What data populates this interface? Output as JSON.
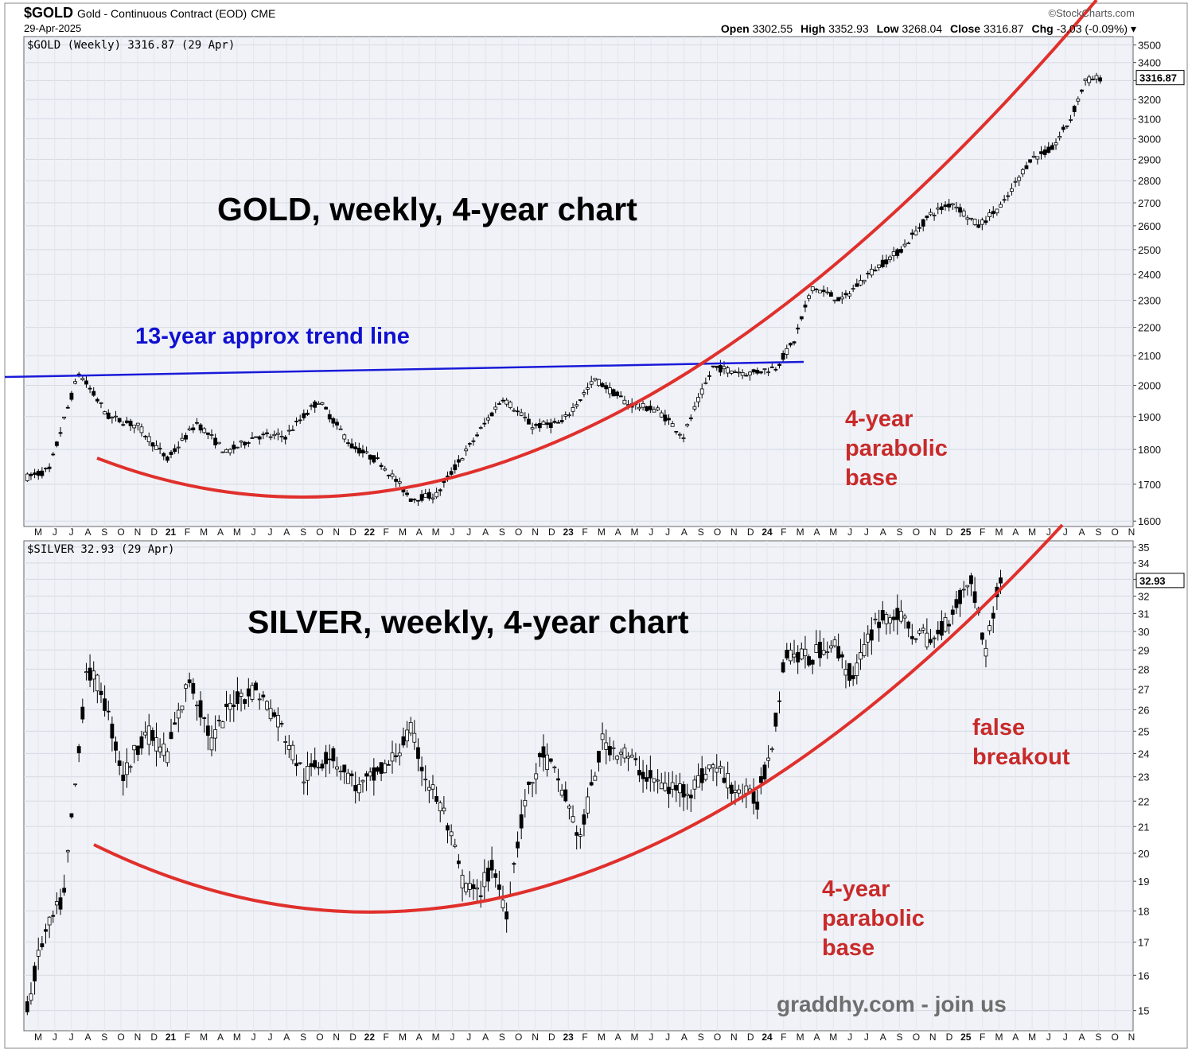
{
  "header": {
    "symbol": "$GOLD",
    "description": "Gold - Continuous Contract (EOD)",
    "exchange": "CME",
    "date": "29-Apr-2025",
    "brand": "©StockCharts.com",
    "open_label": "Open",
    "open": "3302.55",
    "high_label": "High",
    "high": "3352.93",
    "low_label": "Low",
    "low": "3268.04",
    "close_label": "Close",
    "close": "3316.87",
    "chg_label": "Chg",
    "chg": "-3.03 (-0.09%)"
  },
  "chart_data": [
    {
      "type": "candlestick",
      "legend": "$GOLD (Weekly) 3316.87 (29 Apr)",
      "title": "GOLD, weekly, 4-year chart",
      "last_value_label": "3316.87",
      "x_ticks": [
        "M",
        "J",
        "J",
        "A",
        "S",
        "O",
        "N",
        "D",
        "21",
        "F",
        "M",
        "A",
        "M",
        "J",
        "J",
        "A",
        "S",
        "O",
        "N",
        "D",
        "22",
        "F",
        "M",
        "A",
        "M",
        "J",
        "J",
        "A",
        "S",
        "O",
        "N",
        "D",
        "23",
        "F",
        "M",
        "A",
        "M",
        "J",
        "J",
        "A",
        "S",
        "O",
        "N",
        "D",
        "24",
        "F",
        "M",
        "A",
        "M",
        "J",
        "J",
        "A",
        "S",
        "O",
        "N",
        "D",
        "25",
        "F",
        "M",
        "A",
        "M",
        "J",
        "J",
        "A",
        "S",
        "O",
        "N"
      ],
      "y_ticks": [
        1600,
        1700,
        1800,
        1900,
        2000,
        2100,
        2200,
        2300,
        2400,
        2500,
        2600,
        2700,
        2800,
        2900,
        3000,
        3100,
        3200,
        3300,
        3400,
        3500
      ],
      "ylim": [
        1590,
        3530
      ],
      "yscale": "log",
      "anchors": [
        [
          0,
          1720
        ],
        [
          6,
          1740
        ],
        [
          14,
          2040
        ],
        [
          22,
          1900
        ],
        [
          30,
          1870
        ],
        [
          38,
          1770
        ],
        [
          46,
          1880
        ],
        [
          54,
          1790
        ],
        [
          62,
          1840
        ],
        [
          70,
          1840
        ],
        [
          79,
          1950
        ],
        [
          88,
          1810
        ],
        [
          96,
          1760
        ],
        [
          104,
          1660
        ],
        [
          111,
          1670
        ],
        [
          120,
          1810
        ],
        [
          129,
          1960
        ],
        [
          137,
          1870
        ],
        [
          145,
          1880
        ],
        [
          154,
          2020
        ],
        [
          163,
          1940
        ],
        [
          171,
          1920
        ],
        [
          178,
          1840
        ],
        [
          186,
          2060
        ],
        [
          196,
          2040
        ],
        [
          203,
          2060
        ],
        [
          208,
          2150
        ],
        [
          213,
          2350
        ],
        [
          221,
          2300
        ],
        [
          228,
          2400
        ],
        [
          237,
          2500
        ],
        [
          245,
          2650
        ],
        [
          251,
          2700
        ],
        [
          258,
          2600
        ],
        [
          265,
          2700
        ],
        [
          272,
          2900
        ],
        [
          278,
          2950
        ],
        [
          283,
          3100
        ],
        [
          287,
          3300
        ],
        [
          291,
          3316
        ]
      ],
      "annotations": [
        {
          "text": "13-year approx trend line",
          "color": "#1010d0"
        },
        {
          "text": "4-year",
          "color": "#c82a2a"
        },
        {
          "text": "parabolic",
          "color": "#c82a2a"
        },
        {
          "text": "base",
          "color": "#c82a2a"
        }
      ]
    },
    {
      "type": "candlestick",
      "legend": "$SILVER 32.93 (29 Apr)",
      "title": "SILVER, weekly, 4-year chart",
      "last_value_label": "32.93",
      "x_ticks": [
        "M",
        "J",
        "J",
        "A",
        "S",
        "O",
        "N",
        "D",
        "21",
        "F",
        "M",
        "A",
        "M",
        "J",
        "J",
        "A",
        "S",
        "O",
        "N",
        "D",
        "22",
        "F",
        "M",
        "A",
        "M",
        "J",
        "J",
        "A",
        "S",
        "O",
        "N",
        "D",
        "23",
        "F",
        "M",
        "A",
        "M",
        "J",
        "J",
        "A",
        "S",
        "O",
        "N",
        "D",
        "24",
        "F",
        "M",
        "A",
        "M",
        "J",
        "J",
        "A",
        "S",
        "O",
        "N",
        "D",
        "25",
        "F",
        "M",
        "A",
        "M",
        "J",
        "J",
        "A",
        "S",
        "O",
        "N"
      ],
      "y_ticks": [
        15,
        16,
        17,
        18,
        19,
        20,
        21,
        22,
        23,
        24,
        25,
        26,
        27,
        28,
        29,
        30,
        31,
        32,
        33,
        34,
        35
      ],
      "ylim": [
        14.5,
        35.2
      ],
      "yscale": "log",
      "anchors": [
        [
          0,
          15.0
        ],
        [
          4,
          17.0
        ],
        [
          10,
          18.5
        ],
        [
          14,
          24.0
        ],
        [
          16,
          28.0
        ],
        [
          20,
          27.0
        ],
        [
          26,
          23.0
        ],
        [
          32,
          25.0
        ],
        [
          38,
          24.0
        ],
        [
          44,
          27.5
        ],
        [
          50,
          24.5
        ],
        [
          56,
          26.5
        ],
        [
          62,
          27.0
        ],
        [
          68,
          25.5
        ],
        [
          75,
          23.0
        ],
        [
          82,
          24.0
        ],
        [
          90,
          22.5
        ],
        [
          98,
          23.5
        ],
        [
          104,
          25.0
        ],
        [
          108,
          23.0
        ],
        [
          113,
          21.5
        ],
        [
          118,
          19.0
        ],
        [
          122,
          18.5
        ],
        [
          126,
          19.5
        ],
        [
          130,
          18.0
        ],
        [
          135,
          22.0
        ],
        [
          140,
          24.0
        ],
        [
          145,
          22.5
        ],
        [
          150,
          20.5
        ],
        [
          156,
          24.5
        ],
        [
          162,
          24.0
        ],
        [
          168,
          23.0
        ],
        [
          174,
          22.5
        ],
        [
          180,
          22.5
        ],
        [
          186,
          23.5
        ],
        [
          192,
          22.5
        ],
        [
          198,
          22.0
        ],
        [
          202,
          24.5
        ],
        [
          206,
          29.0
        ],
        [
          212,
          28.5
        ],
        [
          218,
          29.5
        ],
        [
          224,
          27.5
        ],
        [
          230,
          30.5
        ],
        [
          235,
          31.0
        ],
        [
          240,
          30.0
        ],
        [
          246,
          29.5
        ],
        [
          252,
          31.5
        ],
        [
          256,
          33.0
        ],
        [
          260,
          29.0
        ],
        [
          264,
          33.0
        ]
      ],
      "annotations": [
        {
          "text": "false",
          "color": "#c82a2a"
        },
        {
          "text": "breakout",
          "color": "#c82a2a"
        },
        {
          "text": "4-year",
          "color": "#c82a2a"
        },
        {
          "text": "parabolic",
          "color": "#c82a2a"
        },
        {
          "text": "base",
          "color": "#c82a2a"
        },
        {
          "text": "graddhy.com - join us",
          "color": "#6e6e6e"
        }
      ]
    }
  ]
}
